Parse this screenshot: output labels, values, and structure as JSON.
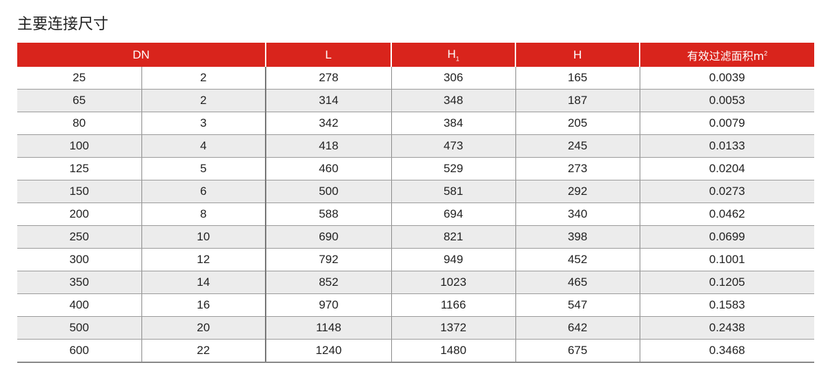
{
  "title": "主要连接尺寸",
  "header": {
    "dn": "DN",
    "l": "L",
    "h1_base": "H",
    "h1_sub": "1",
    "h": "H",
    "area_label": "有效过滤面积m",
    "area_sup": "2"
  },
  "colors": {
    "header_bg": "#d9241c",
    "alt_row": "#ececec"
  },
  "rows": [
    [
      "25",
      "2",
      "278",
      "306",
      "165",
      "0.0039"
    ],
    [
      "65",
      "2",
      "314",
      "348",
      "187",
      "0.0053"
    ],
    [
      "80",
      "3",
      "342",
      "384",
      "205",
      "0.0079"
    ],
    [
      "100",
      "4",
      "418",
      "473",
      "245",
      "0.0133"
    ],
    [
      "125",
      "5",
      "460",
      "529",
      "273",
      "0.0204"
    ],
    [
      "150",
      "6",
      "500",
      "581",
      "292",
      "0.0273"
    ],
    [
      "200",
      "8",
      "588",
      "694",
      "340",
      "0.0462"
    ],
    [
      "250",
      "10",
      "690",
      "821",
      "398",
      "0.0699"
    ],
    [
      "300",
      "12",
      "792",
      "949",
      "452",
      "0.1001"
    ],
    [
      "350",
      "14",
      "852",
      "1023",
      "465",
      "0.1205"
    ],
    [
      "400",
      "16",
      "970",
      "1166",
      "547",
      "0.1583"
    ],
    [
      "500",
      "20",
      "1148",
      "1372",
      "642",
      "0.2438"
    ],
    [
      "600",
      "22",
      "1240",
      "1480",
      "675",
      "0.3468"
    ]
  ]
}
